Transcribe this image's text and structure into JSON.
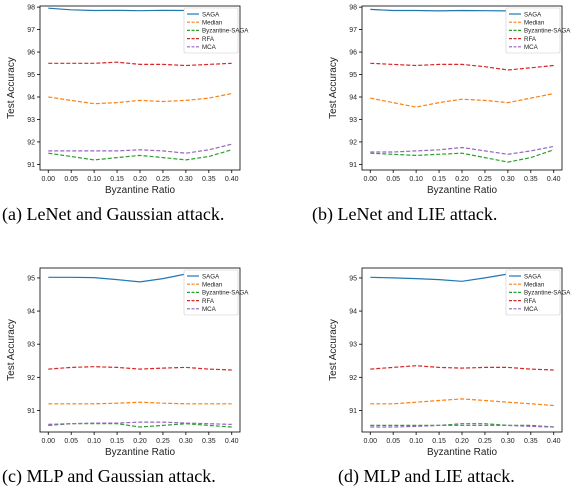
{
  "colors": {
    "SAGA": "#1f77b4",
    "Median": "#ff7f0e",
    "Byzantine-SAGA": "#2ca02c",
    "RFA": "#d62728",
    "MCA": "#9467bd"
  },
  "chart_data": [
    {
      "type": "line",
      "caption": "(a) LeNet and Gaussian attack.",
      "xlabel": "Byzantine Ratio",
      "ylabel": "Test Accuracy",
      "x": [
        0.0,
        0.05,
        0.1,
        0.15,
        0.2,
        0.25,
        0.3,
        0.35,
        0.4
      ],
      "xticks": [
        "0.00",
        "0.05",
        "0.10",
        "0.15",
        "0.20",
        "0.25",
        "0.30",
        "0.35",
        "0.40"
      ],
      "ylim": [
        90.75,
        98.05
      ],
      "yticks": [
        91,
        92,
        93,
        94,
        95,
        96,
        97,
        98
      ],
      "grid": false,
      "legend_position": "top-right",
      "series": [
        {
          "name": "SAGA",
          "dashed": false,
          "values": [
            97.95,
            97.88,
            97.85,
            97.86,
            97.84,
            97.86,
            97.85,
            97.88,
            97.86
          ]
        },
        {
          "name": "Median",
          "dashed": true,
          "values": [
            94.0,
            93.85,
            93.7,
            93.75,
            93.85,
            93.8,
            93.85,
            93.95,
            94.15
          ]
        },
        {
          "name": "Byzantine-SAGA",
          "dashed": true,
          "values": [
            91.5,
            91.35,
            91.2,
            91.3,
            91.4,
            91.3,
            91.2,
            91.35,
            91.65
          ]
        },
        {
          "name": "RFA",
          "dashed": true,
          "values": [
            95.5,
            95.5,
            95.5,
            95.55,
            95.45,
            95.45,
            95.4,
            95.45,
            95.5
          ]
        },
        {
          "name": "MCA",
          "dashed": true,
          "values": [
            91.6,
            91.6,
            91.6,
            91.6,
            91.65,
            91.6,
            91.5,
            91.65,
            91.9
          ]
        }
      ]
    },
    {
      "type": "line",
      "caption": "(b) LeNet and LIE attack.",
      "xlabel": "Byzantine Ratio",
      "ylabel": "Test Accuracy",
      "x": [
        0.0,
        0.05,
        0.1,
        0.15,
        0.2,
        0.25,
        0.3,
        0.35,
        0.4
      ],
      "xticks": [
        "0.00",
        "0.05",
        "0.10",
        "0.15",
        "0.20",
        "0.25",
        "0.30",
        "0.35",
        "0.40"
      ],
      "ylim": [
        90.75,
        98.05
      ],
      "yticks": [
        91,
        92,
        93,
        94,
        95,
        96,
        97,
        98
      ],
      "grid": false,
      "legend_position": "top-right",
      "series": [
        {
          "name": "SAGA",
          "dashed": false,
          "values": [
            97.9,
            97.85,
            97.85,
            97.83,
            97.85,
            97.84,
            97.83,
            97.85,
            97.9
          ]
        },
        {
          "name": "Median",
          "dashed": true,
          "values": [
            93.95,
            93.75,
            93.55,
            93.75,
            93.9,
            93.85,
            93.75,
            93.95,
            94.15
          ]
        },
        {
          "name": "Byzantine-SAGA",
          "dashed": true,
          "values": [
            91.5,
            91.45,
            91.4,
            91.45,
            91.5,
            91.3,
            91.1,
            91.3,
            91.65
          ]
        },
        {
          "name": "RFA",
          "dashed": true,
          "values": [
            95.5,
            95.45,
            95.4,
            95.45,
            95.45,
            95.35,
            95.2,
            95.3,
            95.4
          ]
        },
        {
          "name": "MCA",
          "dashed": true,
          "values": [
            91.55,
            91.55,
            91.6,
            91.65,
            91.75,
            91.6,
            91.45,
            91.6,
            91.8
          ]
        }
      ]
    },
    {
      "type": "line",
      "caption": "(c) MLP and Gaussian attack.",
      "xlabel": "Byzantine Ratio",
      "ylabel": "Test Accuracy",
      "x": [
        0.0,
        0.05,
        0.1,
        0.15,
        0.2,
        0.25,
        0.3,
        0.35,
        0.4
      ],
      "xticks": [
        "0.00",
        "0.05",
        "0.10",
        "0.15",
        "0.20",
        "0.25",
        "0.30",
        "0.35",
        "0.40"
      ],
      "ylim": [
        90.35,
        95.3
      ],
      "yticks": [
        91,
        92,
        93,
        94,
        95
      ],
      "grid": false,
      "legend_position": "top-right",
      "series": [
        {
          "name": "SAGA",
          "dashed": false,
          "values": [
            95.02,
            95.02,
            95.01,
            94.95,
            94.88,
            94.98,
            95.12,
            95.18,
            95.15
          ]
        },
        {
          "name": "Median",
          "dashed": true,
          "values": [
            91.2,
            91.2,
            91.2,
            91.22,
            91.25,
            91.22,
            91.2,
            91.2,
            91.2
          ]
        },
        {
          "name": "Byzantine-SAGA",
          "dashed": true,
          "values": [
            90.55,
            90.6,
            90.6,
            90.6,
            90.5,
            90.55,
            90.6,
            90.55,
            90.5
          ]
        },
        {
          "name": "RFA",
          "dashed": true,
          "values": [
            92.25,
            92.3,
            92.32,
            92.3,
            92.25,
            92.28,
            92.3,
            92.25,
            92.22
          ]
        },
        {
          "name": "MCA",
          "dashed": true,
          "values": [
            90.58,
            90.6,
            90.62,
            90.62,
            90.65,
            90.65,
            90.62,
            90.6,
            90.58
          ]
        }
      ]
    },
    {
      "type": "line",
      "caption": "(d) MLP and LIE attack.",
      "xlabel": "Byzantine Ratio",
      "ylabel": "Test Accuracy",
      "x": [
        0.0,
        0.05,
        0.1,
        0.15,
        0.2,
        0.25,
        0.3,
        0.35,
        0.4
      ],
      "xticks": [
        "0.00",
        "0.05",
        "0.10",
        "0.15",
        "0.20",
        "0.25",
        "0.30",
        "0.35",
        "0.40"
      ],
      "ylim": [
        90.35,
        95.3
      ],
      "yticks": [
        91,
        92,
        93,
        94,
        95
      ],
      "grid": false,
      "legend_position": "top-right",
      "series": [
        {
          "name": "SAGA",
          "dashed": false,
          "values": [
            95.02,
            95.0,
            94.98,
            94.95,
            94.9,
            95.0,
            95.12,
            95.18,
            95.15
          ]
        },
        {
          "name": "Median",
          "dashed": true,
          "values": [
            91.2,
            91.2,
            91.25,
            91.3,
            91.35,
            91.3,
            91.25,
            91.2,
            91.15
          ]
        },
        {
          "name": "Byzantine-SAGA",
          "dashed": true,
          "values": [
            90.55,
            90.55,
            90.55,
            90.55,
            90.6,
            90.6,
            90.55,
            90.55,
            90.5
          ]
        },
        {
          "name": "RFA",
          "dashed": true,
          "values": [
            92.25,
            92.3,
            92.35,
            92.3,
            92.28,
            92.3,
            92.3,
            92.25,
            92.22
          ]
        },
        {
          "name": "MCA",
          "dashed": true,
          "values": [
            90.5,
            90.5,
            90.52,
            90.55,
            90.55,
            90.55,
            90.55,
            90.52,
            90.5
          ]
        }
      ]
    }
  ]
}
